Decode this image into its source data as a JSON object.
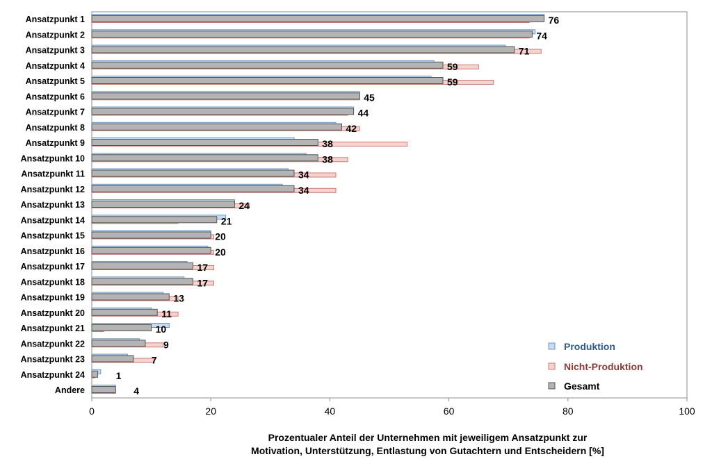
{
  "chart_data": {
    "type": "bar",
    "orientation": "horizontal",
    "categories": [
      "Ansatzpunkt 1",
      "Ansatzpunkt 2",
      "Ansatzpunkt 3",
      "Ansatzpunkt 4",
      "Ansatzpunkt 5",
      "Ansatzpunkt 6",
      "Ansatzpunkt 7",
      "Ansatzpunkt 8",
      "Ansatzpunkt 9",
      "Ansatzpunkt 10",
      "Ansatzpunkt 11",
      "Ansatzpunkt 12",
      "Ansatzpunkt 13",
      "Ansatzpunkt 14",
      "Ansatzpunkt 15",
      "Ansatzpunkt 16",
      "Ansatzpunkt 17",
      "Ansatzpunkt 18",
      "Ansatzpunkt 19",
      "Ansatzpunkt 20",
      "Ansatzpunkt 21",
      "Ansatzpunkt 22",
      "Ansatzpunkt 23",
      "Ansatzpunkt 24",
      "Andere"
    ],
    "series": [
      {
        "name": "Produktion",
        "color": "#c6dcf2",
        "stroke": "#6f95c4",
        "values": [
          76,
          74.5,
          69.5,
          57.5,
          57,
          45,
          44,
          41,
          34,
          36,
          33,
          32,
          24,
          22.5,
          20,
          19.5,
          16,
          15.5,
          12,
          10,
          13,
          8,
          6,
          1.5,
          4
        ]
      },
      {
        "name": "Nicht-Produktion",
        "color": "#f6d3cf",
        "stroke": "#c87c74",
        "values": [
          73.5,
          73.5,
          75.5,
          65,
          67.5,
          45,
          43,
          45,
          53,
          43,
          41,
          41,
          26.5,
          14.5,
          20.5,
          20.5,
          20.5,
          20.5,
          14.5,
          14.5,
          2,
          12,
          10.5,
          0.5,
          4
        ]
      },
      {
        "name": "Gesamt",
        "color": "#b4b4b4",
        "stroke": "#555555",
        "values": [
          76,
          74,
          71,
          59,
          59,
          45,
          44,
          42,
          38,
          38,
          34,
          34,
          24,
          21,
          20,
          20,
          17,
          17,
          13,
          11,
          10,
          9,
          7,
          1,
          4
        ]
      }
    ],
    "data_labels": [
      "76",
      "74",
      "71",
      "59",
      "59",
      "45",
      "44",
      "42",
      "38",
      "38",
      "34",
      "34",
      "24",
      "21",
      "20",
      "20",
      "17",
      "17",
      "13",
      "11",
      "10",
      "9",
      "7",
      "1",
      "4"
    ],
    "xlim": [
      0,
      100
    ],
    "xticks": [
      "0",
      "20",
      "40",
      "60",
      "80",
      "100"
    ],
    "xlabel_line1": "Prozentualer Anteil der Unternehmen mit jeweiligem Ansatzpunkt zur",
    "xlabel_line2": "Motivation, Unterstützung, Entlastung von Gutachtern und Entscheidern [%]",
    "legend_position": "bottom-right",
    "legend": [
      {
        "label": "Produktion",
        "text_color": "#2b5a8c"
      },
      {
        "label": "Nicht-Produktion",
        "text_color": "#8c3b34"
      },
      {
        "label": "Gesamt",
        "text_color": "#000000"
      }
    ],
    "grid": false
  }
}
